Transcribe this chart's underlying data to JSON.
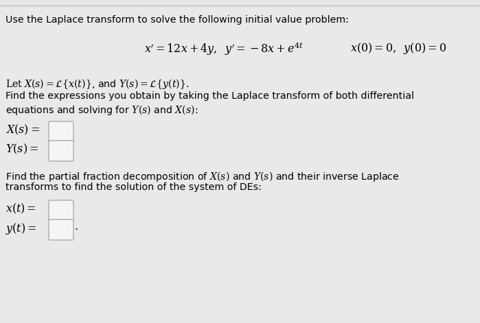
{
  "bg_color": "#e9e9e9",
  "fig_width": 6.99,
  "fig_height": 4.71,
  "dpi": 100,
  "line_color": "#bbbbbb",
  "text_color": "#000000",
  "box_color": "#f5f5f5",
  "box_edge_color": "#aaaaaa",
  "title_text": "Use the Laplace transform to solve the following initial value problem:",
  "eq_left": "$x' = 12x + 4y, \\;\\; y' = -8x + e^{4t}$",
  "eq_right": "$x(0) = 0, \\;\\; y(0) = 0$",
  "let_text": "$\\mathrm{Let}\\; X(s) = \\mathcal{L}\\{x(t)\\}$, and $Y(s) = \\mathcal{L}\\{y(t)\\}$.",
  "find1_text": "Find the expressions you obtain by taking the Laplace transform of both differential",
  "find1b_text": "equations and solving for $Y(s)$ and $X(s)$:",
  "Xs_label": "$X(s) =$",
  "Ys_label": "$Y(s) =$",
  "find2_text": "Find the partial fraction decomposition of $X(s)$ and $Y(s)$ and their inverse Laplace",
  "find2b_text": "transforms to find the solution of the system of DEs:",
  "xt_label": "$x(t) =$",
  "yt_label": "$y(t) =$"
}
